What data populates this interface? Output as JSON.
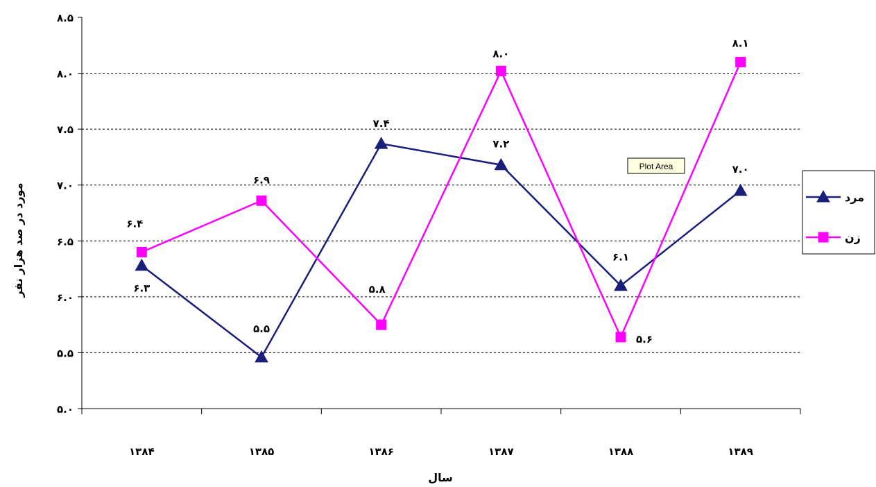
{
  "chart_data": {
    "type": "line",
    "title": "",
    "xlabel": "سال",
    "ylabel": "مورد در صد هزار نفر",
    "categories": [
      "۱۳۸۴",
      "۱۳۸۵",
      "۱۳۸۶",
      "۱۳۸۷",
      "۱۳۸۸",
      "۱۳۸۹"
    ],
    "ylim": [
      5.0,
      8.5
    ],
    "yticks": [
      5.0,
      5.5,
      6.0,
      6.5,
      7.0,
      7.5,
      8.0,
      8.5
    ],
    "ytick_labels": [
      "۵.۰",
      "۵.۵",
      "۶.۰",
      "۶.۵",
      "۷.۰",
      "۷.۵",
      "۸.۰",
      "۸.۵"
    ],
    "grid": true,
    "legend_position": "right",
    "series": [
      {
        "name": "مرد",
        "color": "#1A1F7A",
        "marker": "triangle",
        "values": [
          6.3,
          5.5,
          7.4,
          7.2,
          6.1,
          7.0
        ],
        "plotted": [
          6.28,
          5.46,
          7.37,
          7.18,
          6.1,
          6.95
        ],
        "data_labels": [
          "۶.۳",
          "۵.۵",
          "۷.۴",
          "۷.۲",
          "۶.۱",
          "۷.۰"
        ]
      },
      {
        "name": "زن",
        "color": "#FF00FF",
        "marker": "square",
        "values": [
          6.4,
          6.9,
          5.8,
          8.0,
          5.6,
          8.1
        ],
        "plotted": [
          6.4,
          6.86,
          5.75,
          8.02,
          5.64,
          8.1
        ],
        "data_labels": [
          "۶.۴",
          "۶.۹",
          "۵.۸",
          "۸.۰",
          "۵.۶",
          "۸.۱"
        ]
      }
    ],
    "tooltip": "Plot Area"
  }
}
